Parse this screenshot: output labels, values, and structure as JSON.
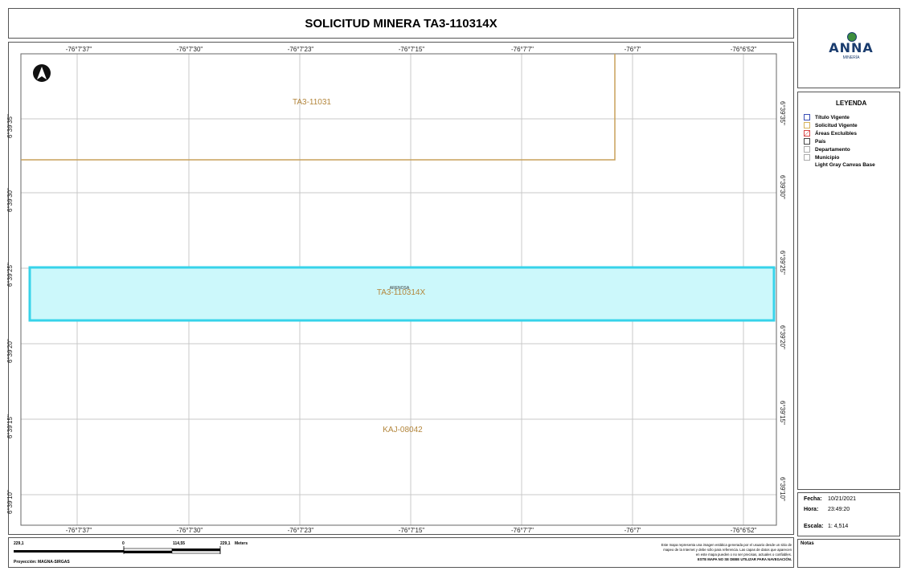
{
  "title": "SOLICITUD MINERA TA3-110314X",
  "map": {
    "top_ticks": [
      "-76°7'37\"",
      "-76°7'30\"",
      "-76°7'23\"",
      "-76°7'15\"",
      "-76°7'7\"",
      "-76°7'",
      "-76°6'52\""
    ],
    "bottom_ticks": [
      "-76°7'37\"",
      "-76°7'30\"",
      "-76°7'23\"",
      "-76°7'15\"",
      "-76°7'7\"",
      "-76°7'",
      "-76°6'52\""
    ],
    "left_ticks": [
      "6°39'35\"",
      "6°39'30\"",
      "6°39'25\"",
      "6°39'20\"",
      "6°39'15\"",
      "6°39'10\""
    ],
    "right_ticks": [
      "6°39'35\"",
      "6°39'30\"",
      "6°39'25\"",
      "6°39'20\"",
      "6°39'15\"",
      "6°39'10\""
    ],
    "labels": {
      "ta3_11031": "TA3-11031",
      "ta3_110314x": "TA3-110314X",
      "small": "ARENOSA",
      "kaj": "KAJ-08042"
    },
    "colors": {
      "solicitud": "#c8a15a",
      "highlight_fill": "#ccf8fb",
      "highlight_stroke": "#37d3ea",
      "grid": "#c8c8c8"
    },
    "north_arrow": "north-arrow-icon"
  },
  "logo": {
    "text": "ANNA",
    "sub": "MINERÍA"
  },
  "legend": {
    "title": "LEYENDA",
    "items": [
      {
        "label": "Título Vigente",
        "color": "#3a4fb5"
      },
      {
        "label": "Solicitud Vigente",
        "color": "#d6b35a"
      },
      {
        "label": "Áreas Excluibles",
        "color": "#d84848"
      },
      {
        "label": "País",
        "color": "#444444"
      },
      {
        "label": "Departamento",
        "color": "#888888"
      },
      {
        "label": "Municipio",
        "color": "#888888"
      },
      {
        "label": "Light Gray Canvas Base",
        "color": ""
      }
    ]
  },
  "info": {
    "fecha_label": "Fecha:",
    "fecha": "10/21/2021",
    "hora_label": "Hora:",
    "hora": "23:49:20",
    "escala_label": "Escala:",
    "escala": "1: 4,514"
  },
  "notes_label": "Notas",
  "scale_bar": {
    "labels": [
      "229,1",
      "0",
      "114,55",
      "229,1",
      "Meters"
    ],
    "projection": "Proyección: MAGNA-SIRGAS"
  },
  "disclaimer": {
    "line1": "Este mapa representa una imagen estática generada por el usuario desde un sitio de",
    "line2": "mapeo de la Internet y debe sólo para referencia. Las capas de datos que aparecen",
    "line3": "en este mapa pueden o no ser precisas, actuales o confiables.",
    "line4": "ESTE MAPA NO SE DEBE UTILIZAR PARA NAVEGACIÓN."
  }
}
